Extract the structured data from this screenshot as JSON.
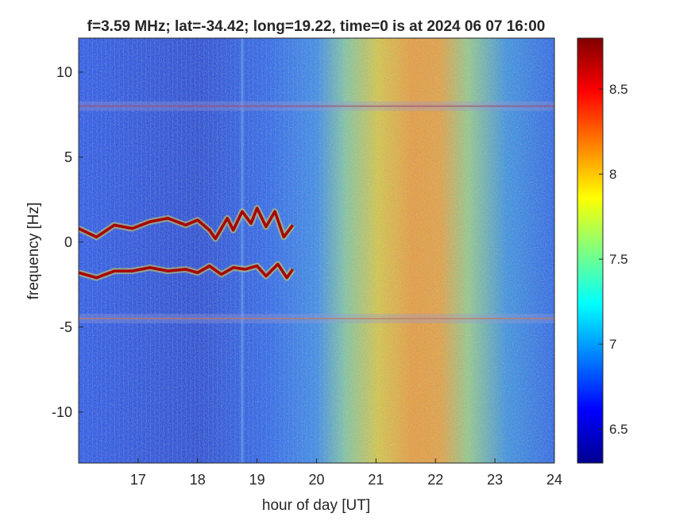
{
  "chart_data": {
    "type": "heatmap",
    "title": "f=3.59 MHz;  lat=-34.42; long=19.22, time=0 is at 2024 06 07 16:00",
    "xlabel": "hour of day [UT]",
    "ylabel": "frequency [Hz]",
    "xlim": [
      16,
      24
    ],
    "ylim": [
      -13,
      12
    ],
    "xticks": [
      17,
      18,
      19,
      20,
      21,
      22,
      23,
      24
    ],
    "yticks": [
      10,
      5,
      0,
      -5,
      -10
    ],
    "colorbar": {
      "range": [
        6.3,
        8.8
      ],
      "ticks": [
        8.5,
        8,
        7.5,
        7,
        6.5
      ],
      "colormap": "jet"
    },
    "features": {
      "upper_line_hz": 8.0,
      "lower_line_hz": -4.5,
      "upper_trace": [
        [
          16.0,
          0.8
        ],
        [
          16.3,
          0.3
        ],
        [
          16.6,
          1.0
        ],
        [
          16.9,
          0.8
        ],
        [
          17.2,
          1.2
        ],
        [
          17.5,
          1.4
        ],
        [
          17.8,
          1.0
        ],
        [
          18.0,
          1.3
        ],
        [
          18.2,
          0.7
        ],
        [
          18.3,
          0.2
        ],
        [
          18.5,
          1.4
        ],
        [
          18.6,
          0.7
        ],
        [
          18.75,
          1.8
        ],
        [
          18.9,
          1.1
        ],
        [
          19.0,
          2.0
        ],
        [
          19.15,
          0.9
        ],
        [
          19.3,
          1.8
        ],
        [
          19.45,
          0.3
        ],
        [
          19.6,
          1.0
        ]
      ],
      "lower_trace": [
        [
          16.0,
          -1.8
        ],
        [
          16.3,
          -2.1
        ],
        [
          16.6,
          -1.7
        ],
        [
          16.9,
          -1.7
        ],
        [
          17.2,
          -1.5
        ],
        [
          17.5,
          -1.7
        ],
        [
          17.8,
          -1.6
        ],
        [
          18.0,
          -1.8
        ],
        [
          18.2,
          -1.4
        ],
        [
          18.4,
          -1.9
        ],
        [
          18.6,
          -1.5
        ],
        [
          18.8,
          -1.6
        ],
        [
          19.0,
          -1.4
        ],
        [
          19.15,
          -2.0
        ],
        [
          19.35,
          -1.3
        ],
        [
          19.5,
          -2.1
        ],
        [
          19.6,
          -1.6
        ]
      ]
    }
  }
}
